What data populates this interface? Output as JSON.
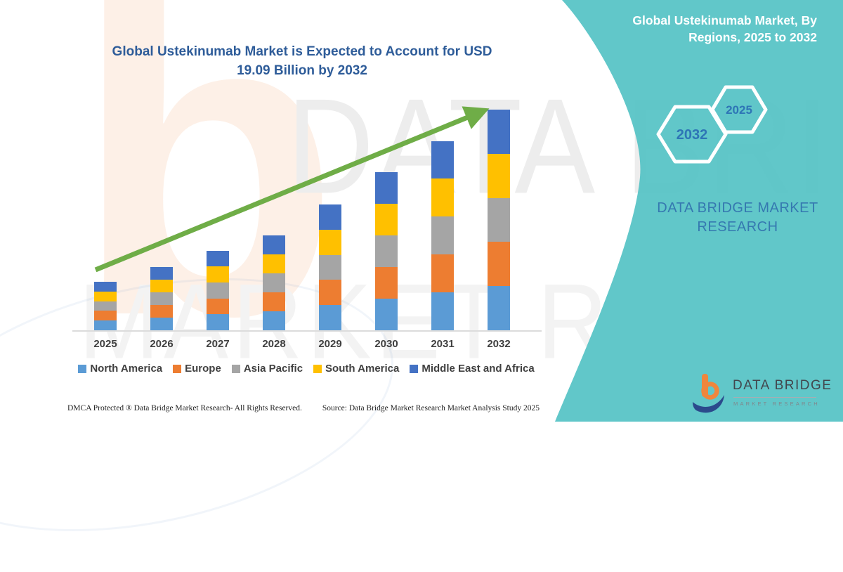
{
  "chart_panel": {
    "title": "Global Ustekinumab Market is Expected to Account for USD 19.09 Billion by 2032",
    "title_line1": "Global Ustekinumab Market is Expected to Account for USD",
    "title_line2": "19.09 Billion by 2032",
    "title_color": "#2E5C99",
    "watermark_letter": "b",
    "watermark_line1": "DATA BRIDGE",
    "watermark_line2": "MARKET RESEARCH",
    "footer_left": "DMCA Protected ® Data Bridge Market Research-  All Rights Reserved.",
    "footer_right": "Source: Data Bridge Market Research  Market Analysis Study 2025"
  },
  "chart_data": {
    "type": "bar",
    "stacked": true,
    "title": "Global Ustekinumab Market is Expected to Account for USD 19.09 Billion by 2032",
    "unit": "USD Billion",
    "highlight_value": "USD 19.09 Billion by 2032",
    "categories": [
      "2025",
      "2026",
      "2027",
      "2028",
      "2029",
      "2030",
      "2031",
      "2032"
    ],
    "series": [
      {
        "name": "North America",
        "color": "#5B9BD5",
        "values": [
          0.84,
          1.1,
          1.38,
          1.64,
          2.18,
          2.74,
          3.28,
          3.82
        ]
      },
      {
        "name": "Europe",
        "color": "#ED7D31",
        "values": [
          0.84,
          1.1,
          1.38,
          1.64,
          2.18,
          2.74,
          3.28,
          3.82
        ]
      },
      {
        "name": "Asia Pacific",
        "color": "#A5A5A5",
        "values": [
          0.84,
          1.1,
          1.38,
          1.64,
          2.18,
          2.74,
          3.28,
          3.82
        ]
      },
      {
        "name": "South America",
        "color": "#FFC000",
        "values": [
          0.84,
          1.1,
          1.38,
          1.64,
          2.18,
          2.74,
          3.28,
          3.82
        ]
      },
      {
        "name": "Middle East and Africa",
        "color": "#4472C4",
        "values": [
          0.84,
          1.1,
          1.38,
          1.64,
          2.18,
          2.74,
          3.28,
          3.82
        ]
      }
    ],
    "totals_usd_billion_est": [
      4.2,
      5.5,
      6.9,
      8.2,
      10.9,
      13.7,
      16.4,
      19.09
    ],
    "ylim": [
      0,
      20
    ],
    "gridlines": false,
    "y_axis_visible": false,
    "legend_position": "bottom",
    "trend_arrow": {
      "color": "#6FAD47",
      "from_year": "2025",
      "to_year": "2032"
    }
  },
  "side_panel": {
    "background_color": "#57C3C6",
    "title_line1": "Global Ustekinumab Market, By",
    "title_line2": "Regions, 2025 to 2032",
    "hexagon_back_label": "2032",
    "hexagon_front_label": "2025",
    "hexagon_label_color": "#2E75B6",
    "brand_text_line1": "DATA BRIDGE MARKET",
    "brand_text_line2": "RESEARCH",
    "logo_name": "DATA BRIDGE",
    "logo_subtitle": "MARKET RESEARCH"
  }
}
